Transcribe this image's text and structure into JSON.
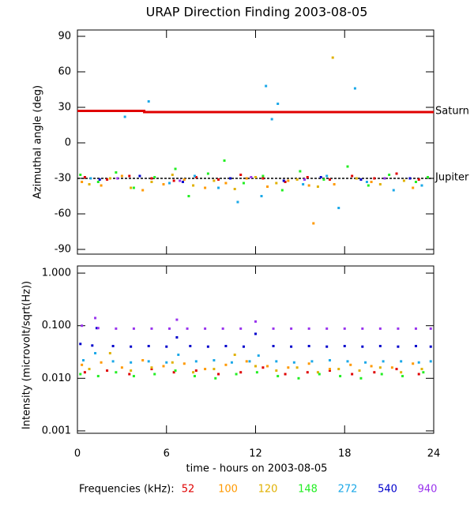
{
  "chart_data": [
    {
      "type": "scatter",
      "title": "URAP Direction Finding  2003-08-05",
      "ylabel": "Azimuthal angle (deg)",
      "xlim": [
        0,
        24
      ],
      "xticks": [
        0,
        6,
        12,
        18,
        24
      ],
      "ylim": [
        -95,
        95
      ],
      "yticks": [
        90,
        60,
        30,
        0,
        -30,
        -60,
        -90
      ],
      "lines": [
        {
          "label": "Saturn",
          "color": "#e00000",
          "x": [
            0,
            4.5,
            4.5,
            24
          ],
          "values": [
            27,
            27,
            26,
            26
          ]
        },
        {
          "label": "Jupiter",
          "color": "#000000",
          "x": [
            0,
            24
          ],
          "values": [
            -30,
            -30
          ]
        }
      ],
      "series": [
        {
          "color": "#e00000",
          "x": [
            0.5,
            2,
            3.5,
            5,
            6.5,
            8,
            9.5,
            11,
            12.5,
            14,
            15.5,
            17,
            18.5,
            20,
            21.5,
            23
          ],
          "values": [
            -29,
            -31,
            -28,
            -30,
            -32,
            -29,
            -31,
            -27,
            -30,
            -33,
            -29,
            -31,
            -28,
            -30,
            -26,
            -31
          ]
        },
        {
          "color": "#ff9900",
          "x": [
            0.3,
            1.6,
            3,
            4.4,
            5.8,
            7.2,
            8.6,
            10,
            11.4,
            12.8,
            14.2,
            15.6,
            15.9,
            17.3,
            19.8,
            22.6
          ],
          "values": [
            -33,
            -36,
            -28,
            -40,
            -35,
            -31,
            -38,
            -34,
            -30,
            -37,
            -32,
            -36,
            -68,
            -35,
            -33,
            -38
          ]
        },
        {
          "color": "#e0b000",
          "x": [
            0.8,
            2.2,
            3.6,
            5,
            6.4,
            7.8,
            9.2,
            10.6,
            12,
            13.4,
            14.8,
            16.2,
            17.2,
            18.8,
            20.4,
            22
          ],
          "values": [
            -35,
            -30,
            -38,
            -33,
            -27,
            -36,
            -32,
            -39,
            -29,
            -34,
            -31,
            -37,
            72,
            -30,
            -35,
            -32
          ]
        },
        {
          "color": "#22ee22",
          "x": [
            0.2,
            1.4,
            2.6,
            3.8,
            5.2,
            6.6,
            7.5,
            8.8,
            9.9,
            11.2,
            12.5,
            13.8,
            15,
            16.6,
            18.2,
            19.6,
            21,
            22.8,
            23.6
          ],
          "values": [
            -27,
            -33,
            -25,
            -38,
            -29,
            -22,
            -45,
            -26,
            -15,
            -34,
            -28,
            -40,
            -24,
            -31,
            -20,
            -36,
            -27,
            -33,
            -29
          ]
        },
        {
          "color": "#1aa8e8",
          "x": [
            0.9,
            3.2,
            4.8,
            6.2,
            7.9,
            9.5,
            10.8,
            12.4,
            12.7,
            13.1,
            13.5,
            15.2,
            16.8,
            17.6,
            18.7,
            19.5,
            21.3,
            23.2
          ],
          "values": [
            -30,
            22,
            35,
            -34,
            -28,
            -38,
            -50,
            -45,
            48,
            20,
            33,
            -35,
            -28,
            -55,
            46,
            -33,
            -40,
            -36
          ]
        },
        {
          "color": "#0000cc",
          "x": [
            1.5,
            4.2,
            7.1,
            10.3,
            13.9,
            16.4,
            19.1,
            22.4
          ],
          "values": [
            -31,
            -28,
            -33,
            -30,
            -32,
            -29,
            -31,
            -30
          ]
        },
        {
          "color": "#9933ee",
          "x": [
            2.7,
            6.9,
            11.7,
            15.3,
            20.7
          ],
          "values": [
            -30,
            -32,
            -29,
            -31,
            -30
          ]
        }
      ]
    },
    {
      "type": "scatter",
      "log": true,
      "ylabel": "Intensity (microvolt/sqrt(Hz))",
      "xlabel": "time - hours on 2003-08-05",
      "legend_title": "Frequencies (kHz):",
      "xlim": [
        0,
        24
      ],
      "xticks": [
        0,
        6,
        12,
        18,
        24
      ],
      "ylim": [
        0.0008,
        1.25
      ],
      "yticks": [
        {
          "value": 1,
          "label": "1.000"
        },
        {
          "value": 0.1,
          "label": "0.100"
        },
        {
          "value": 0.01,
          "label": "0.010"
        },
        {
          "value": 0.001,
          "label": "0.001"
        }
      ],
      "series": [
        {
          "name": "52",
          "color": "#e00000",
          "x": [
            0.5,
            2,
            3.5,
            5,
            6.5,
            8,
            9.5,
            11,
            12.5,
            14,
            15.5,
            17,
            18.5,
            20,
            21.5,
            23
          ],
          "values": [
            0.013,
            0.014,
            0.012,
            0.015,
            0.013,
            0.014,
            0.012,
            0.013,
            0.016,
            0.012,
            0.013,
            0.014,
            0.012,
            0.013,
            0.015,
            0.012
          ]
        },
        {
          "name": "100",
          "color": "#ff9900",
          "x": [
            0.3,
            1.6,
            3,
            4.4,
            5.8,
            7.2,
            8.6,
            10,
            11.4,
            12.8,
            14.2,
            15.6,
            17,
            18.4,
            19.8,
            21.2,
            22.6
          ],
          "values": [
            0.018,
            0.02,
            0.016,
            0.022,
            0.017,
            0.019,
            0.015,
            0.018,
            0.021,
            0.017,
            0.016,
            0.019,
            0.015,
            0.018,
            0.017,
            0.016,
            0.019
          ]
        },
        {
          "name": "120",
          "color": "#e0b000",
          "x": [
            0.8,
            2.2,
            3.6,
            5,
            6.4,
            7.8,
            9.2,
            10.6,
            12,
            13.4,
            14.8,
            16.2,
            17.6,
            19,
            20.4,
            21.8,
            23.2
          ],
          "values": [
            0.015,
            0.03,
            0.014,
            0.016,
            0.02,
            0.013,
            0.015,
            0.028,
            0.017,
            0.014,
            0.016,
            0.013,
            0.015,
            0.014,
            0.016,
            0.013,
            0.015
          ]
        },
        {
          "name": "148",
          "color": "#22ee22",
          "x": [
            0.2,
            1.4,
            2.6,
            3.8,
            5.2,
            6.6,
            7.9,
            9.3,
            10.7,
            12.1,
            13.5,
            14.9,
            16.3,
            17.7,
            19.1,
            20.5,
            21.9,
            23.3
          ],
          "values": [
            0.012,
            0.011,
            0.013,
            0.011,
            0.012,
            0.014,
            0.011,
            0.01,
            0.012,
            0.013,
            0.011,
            0.01,
            0.012,
            0.011,
            0.01,
            0.012,
            0.011,
            0.013
          ]
        },
        {
          "name": "272",
          "color": "#1aa8e8",
          "x": [
            0.4,
            1.2,
            2.4,
            3.6,
            4.8,
            6,
            6.8,
            8,
            9.2,
            10.4,
            11.6,
            12.2,
            13.4,
            14.6,
            15.8,
            17,
            18.2,
            19.4,
            20.6,
            21.8,
            23,
            23.8
          ],
          "values": [
            0.022,
            0.03,
            0.021,
            0.02,
            0.021,
            0.02,
            0.028,
            0.021,
            0.022,
            0.02,
            0.021,
            0.027,
            0.021,
            0.02,
            0.021,
            0.022,
            0.021,
            0.02,
            0.021,
            0.021,
            0.02,
            0.021
          ]
        },
        {
          "name": "540",
          "color": "#0000cc",
          "x": [
            0.2,
            1,
            1.3,
            2.4,
            3.6,
            4.8,
            6,
            6.7,
            7.6,
            8.8,
            10,
            11.2,
            12,
            13.2,
            14.4,
            15.6,
            16.8,
            18,
            19.2,
            20.4,
            21.6,
            22.8,
            23.8
          ],
          "values": [
            0.045,
            0.042,
            0.09,
            0.041,
            0.04,
            0.041,
            0.04,
            0.06,
            0.041,
            0.04,
            0.041,
            0.04,
            0.07,
            0.041,
            0.04,
            0.041,
            0.04,
            0.041,
            0.04,
            0.041,
            0.04,
            0.041,
            0.04
          ]
        },
        {
          "name": "940",
          "color": "#9933ee",
          "x": [
            0.3,
            1.2,
            1.4,
            2.6,
            3.8,
            5,
            6.2,
            6.7,
            7.4,
            8.6,
            9.8,
            11,
            12,
            13.2,
            14.4,
            15.6,
            16.8,
            18,
            19.2,
            20.4,
            21.6,
            22.8,
            23.8
          ],
          "values": [
            0.1,
            0.14,
            0.09,
            0.088,
            0.088,
            0.088,
            0.088,
            0.13,
            0.088,
            0.088,
            0.088,
            0.088,
            0.12,
            0.088,
            0.088,
            0.088,
            0.088,
            0.088,
            0.088,
            0.088,
            0.088,
            0.088,
            0.088
          ]
        }
      ]
    }
  ]
}
